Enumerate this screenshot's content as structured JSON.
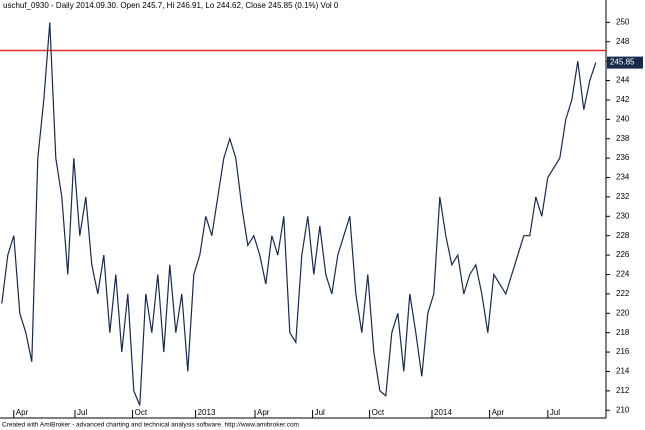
{
  "chart_data": {
    "type": "line",
    "title": "uschuf_0930 - Daily 2014.09.30. Open 245.7, Hi 246.91, Lo 244.62, Close 245.85 (0.1%) Vol 0",
    "footer": "Created with AmiBroker - advanced charting and technical analysis software. http://www.amibroker.com",
    "values": [
      221,
      226,
      228,
      220,
      218,
      215,
      236,
      242,
      250,
      236,
      232,
      224,
      236,
      228,
      232,
      225,
      222,
      226,
      218,
      224,
      216,
      222,
      212,
      210.5,
      222,
      218,
      224,
      216,
      225,
      218,
      222,
      214,
      224,
      226,
      230,
      228,
      232,
      236,
      238,
      236,
      231,
      227,
      228,
      226,
      223,
      228,
      226,
      230,
      218,
      217,
      226,
      230,
      224,
      229,
      224,
      222,
      226,
      228,
      230,
      222,
      218,
      224,
      216,
      212,
      211.5,
      218,
      220,
      214,
      222,
      218,
      213.5,
      220,
      222,
      232,
      228,
      225,
      226,
      222,
      224,
      225,
      222,
      218,
      224,
      223,
      222,
      224,
      226,
      228,
      228,
      232,
      230,
      234,
      235,
      236,
      240,
      242,
      246,
      241,
      244,
      245.85
    ],
    "color": "#1a2a4a",
    "xlim": [
      -0.3,
      100.7
    ],
    "xticks": [
      {
        "value": 2,
        "label": "Apr"
      },
      {
        "value": 12.2,
        "label": "Jul"
      },
      {
        "value": 21.8,
        "label": "Oct"
      },
      {
        "value": 32.3,
        "label": "2013"
      },
      {
        "value": 42.2,
        "label": "Apr"
      },
      {
        "value": 51.8,
        "label": "Jul"
      },
      {
        "value": 61.3,
        "label": "Oct"
      },
      {
        "value": 71.7,
        "label": "2014"
      },
      {
        "value": 81.3,
        "label": "Apr"
      },
      {
        "value": 91,
        "label": "Jul"
      }
    ],
    "ylim": [
      209.2,
      252.1
    ],
    "yticks": [
      210,
      212,
      214,
      216,
      218,
      220,
      222,
      224,
      226,
      228,
      230,
      232,
      234,
      236,
      238,
      240,
      242,
      244,
      246,
      248,
      250
    ],
    "hline": {
      "value": 247.1,
      "color": "#e03030"
    },
    "grid": false
  }
}
